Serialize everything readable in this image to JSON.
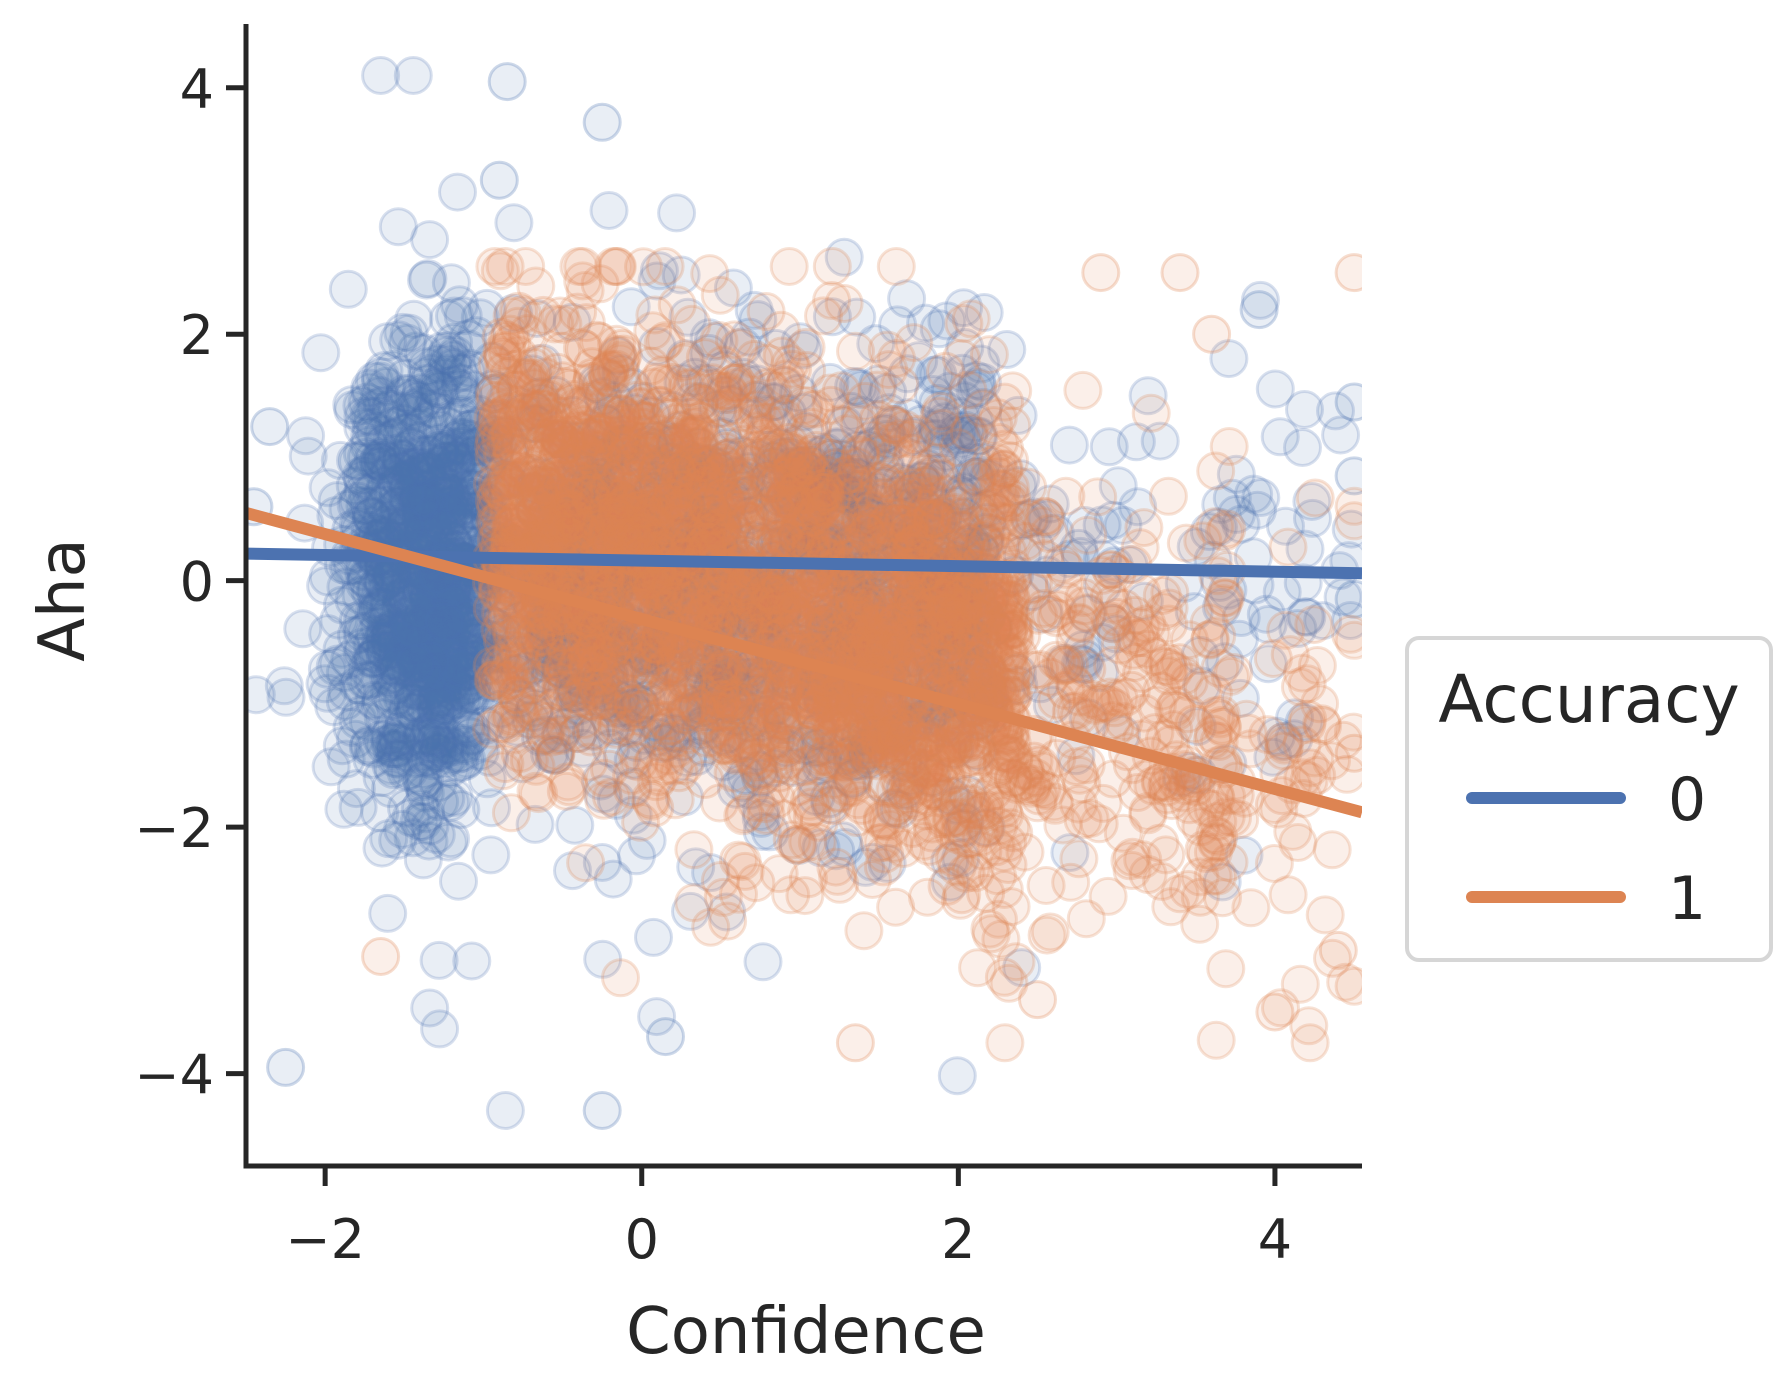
{
  "chart_data": {
    "type": "scatter",
    "title": "",
    "xlabel": "Confidence",
    "ylabel": "Aha",
    "xlim": [
      -2.5,
      4.55
    ],
    "ylim": [
      -4.75,
      4.55
    ],
    "xticks": [
      -2,
      0,
      2,
      4
    ],
    "yticks": [
      -4,
      -2,
      0,
      2,
      4
    ],
    "xtick_labels": [
      "−2",
      "0",
      "2",
      "4"
    ],
    "ytick_labels": [
      "−4",
      "−2",
      "0",
      "2",
      "4"
    ],
    "grid": false,
    "legend": {
      "title": "Accuracy",
      "placement": "center-right outside plot"
    },
    "series": [
      {
        "name": "0",
        "color": "#4c72b0",
        "marker": "hollow-circle",
        "approx_n_points": 2400,
        "x_range": [
          -2.5,
          4.55
        ],
        "y_range": [
          -4.3,
          4.1
        ],
        "regression": {
          "x": [
            -2.5,
            4.55
          ],
          "y": [
            0.22,
            0.06
          ]
        }
      },
      {
        "name": "1",
        "color": "#dd8452",
        "marker": "hollow-circle",
        "approx_n_points": 2800,
        "x_range": [
          -2.5,
          4.55
        ],
        "y_range": [
          -3.75,
          2.55
        ],
        "regression": {
          "x": [
            -2.5,
            4.55
          ],
          "y": [
            0.55,
            -1.88
          ]
        }
      }
    ]
  }
}
